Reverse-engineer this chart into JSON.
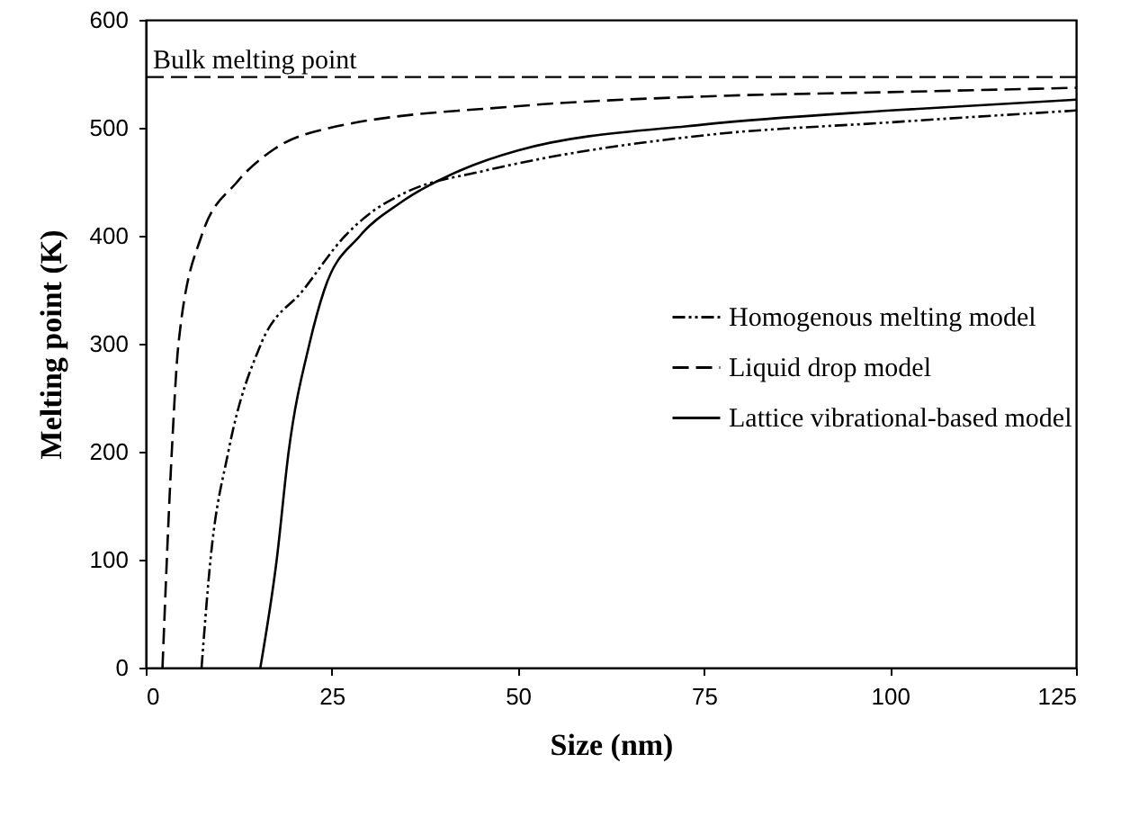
{
  "chart_data": {
    "type": "line",
    "xlabel": "Size (nm)",
    "ylabel": "Melting point (K)",
    "xlim": [
      0,
      125
    ],
    "xticks": [
      0,
      25,
      50,
      75,
      100,
      125
    ],
    "ylim": [
      0,
      600
    ],
    "yticks": [
      0,
      100,
      200,
      300,
      400,
      500,
      600
    ],
    "grid": false,
    "legend": "right",
    "marker": "none",
    "ref_lines": [
      {
        "axis": "y",
        "value": 547,
        "label": "Bulk melting point",
        "line_style": "dashed",
        "color": "#000000"
      }
    ],
    "series": [
      {
        "name": "Homogenous melting model",
        "color": "#000000",
        "line_style": "dotted",
        "x": [
          7.5,
          8.7,
          11.1,
          15.5,
          21.2,
          26.8,
          30,
          34.9,
          45.4,
          50,
          75,
          100,
          125
        ],
        "values": [
          0,
          100,
          200,
          300,
          350,
          400,
          420,
          440,
          460,
          467,
          493,
          505,
          516
        ]
      },
      {
        "name": "Liquid drop model",
        "color": "#000000",
        "line_style": "dashed",
        "x": [
          2.25,
          3.5,
          4.4,
          7.5,
          12.3,
          17.2,
          24.8,
          50,
          75,
          100,
          125
        ],
        "values": [
          0,
          200,
          300,
          400,
          450,
          480,
          500,
          520,
          529,
          533,
          537
        ]
      },
      {
        "name": "Lattice vibrational-based model",
        "color": "#000000",
        "line_style": "solid",
        "x": [
          15.4,
          17.6,
          19.2,
          22,
          24,
          28.8,
          34.1,
          42.1,
          50,
          75,
          100,
          125
        ],
        "values": [
          0,
          100,
          200,
          300,
          350,
          400,
          430,
          460,
          479,
          503,
          516,
          526
        ]
      }
    ]
  }
}
